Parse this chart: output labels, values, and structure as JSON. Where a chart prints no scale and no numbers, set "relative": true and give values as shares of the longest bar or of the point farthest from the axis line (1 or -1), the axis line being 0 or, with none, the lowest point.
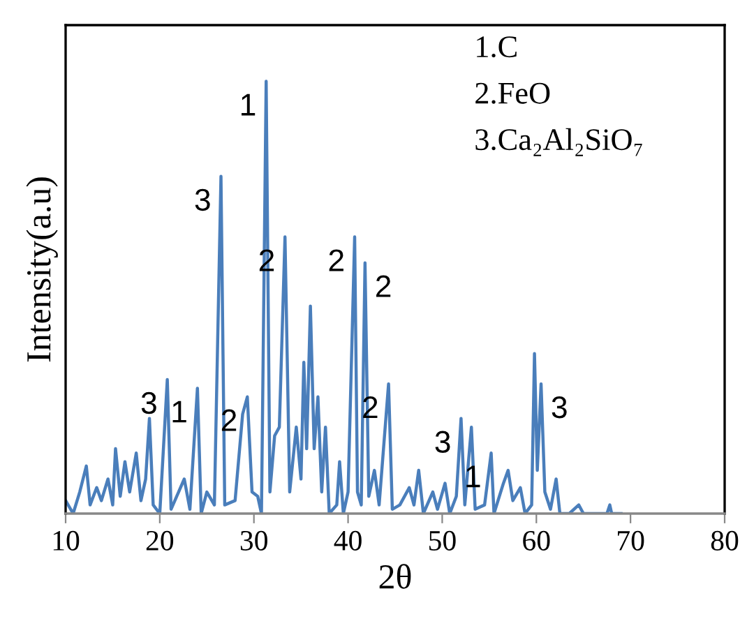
{
  "chart_data": {
    "type": "line",
    "relative": true,
    "xlabel": "2θ",
    "ylabel": "Intensity(a.u)",
    "xlim": [
      10,
      80
    ],
    "xticks": [
      10,
      20,
      30,
      40,
      50,
      60,
      70,
      80
    ],
    "grid": false,
    "marker": "none",
    "line_style": "solid",
    "series": [
      {
        "color": "#4a7ebb",
        "x": [
          10.0,
          10.8,
          11.5,
          12.2,
          12.6,
          13.3,
          13.8,
          14.5,
          15.0,
          15.3,
          15.8,
          16.3,
          16.8,
          17.5,
          18.0,
          18.5,
          18.9,
          19.3,
          20.0,
          20.8,
          21.2,
          22.0,
          22.6,
          23.2,
          24.0,
          24.4,
          25.0,
          25.8,
          26.5,
          26.9,
          28.0,
          28.8,
          29.3,
          29.8,
          30.4,
          30.8,
          31.3,
          31.7,
          32.2,
          32.7,
          33.3,
          33.8,
          34.5,
          35.0,
          35.3,
          35.6,
          36.0,
          36.4,
          36.8,
          37.2,
          37.6,
          38.0,
          38.8,
          39.1,
          39.5,
          40.0,
          40.7,
          41.0,
          41.4,
          41.8,
          42.2,
          42.8,
          43.3,
          44.3,
          44.7,
          45.5,
          46.5,
          47.0,
          47.5,
          48.0,
          49.0,
          49.5,
          50.3,
          50.8,
          51.5,
          52.0,
          52.4,
          53.1,
          53.5,
          54.5,
          55.2,
          55.5,
          56.5,
          57.0,
          57.5,
          58.3,
          58.8,
          59.5,
          59.8,
          60.1,
          60.5,
          60.9,
          61.5,
          62.1,
          62.5,
          63.5,
          64.5,
          65.0,
          67.5,
          67.8,
          68.0,
          69.0
        ],
        "values": [
          0.03,
          0.0,
          0.05,
          0.11,
          0.02,
          0.06,
          0.03,
          0.08,
          0.02,
          0.15,
          0.04,
          0.12,
          0.05,
          0.14,
          0.03,
          0.08,
          0.22,
          0.02,
          0.0,
          0.31,
          0.01,
          0.05,
          0.08,
          0.01,
          0.29,
          0.0,
          0.05,
          0.02,
          0.78,
          0.02,
          0.03,
          0.23,
          0.27,
          0.05,
          0.04,
          0.0,
          1.0,
          0.05,
          0.18,
          0.2,
          0.64,
          0.05,
          0.2,
          0.08,
          0.35,
          0.15,
          0.48,
          0.15,
          0.27,
          0.05,
          0.2,
          0.0,
          0.02,
          0.12,
          0.0,
          0.05,
          0.64,
          0.05,
          0.02,
          0.58,
          0.04,
          0.1,
          0.02,
          0.3,
          0.01,
          0.02,
          0.06,
          0.02,
          0.1,
          0.0,
          0.05,
          0.01,
          0.07,
          0.0,
          0.04,
          0.22,
          0.02,
          0.2,
          0.01,
          0.02,
          0.14,
          0.0,
          0.07,
          0.1,
          0.03,
          0.06,
          0.0,
          0.02,
          0.37,
          0.1,
          0.3,
          0.05,
          0.01,
          0.08,
          0.0,
          0.0,
          0.02,
          0.0,
          0.0,
          0.02,
          0.0,
          0.0
        ]
      }
    ],
    "annotations": [
      "1.C",
      "2.FeO",
      "3.Ca₂Al₂SiO₇",
      {
        "text": "3",
        "x": 26.5,
        "y": 0.78
      },
      {
        "text": "1",
        "x": 31.3,
        "y": 1.0
      },
      {
        "text": "2",
        "x": 33.3,
        "y": 0.64
      },
      {
        "text": "2",
        "x": 40.7,
        "y": 0.64
      },
      {
        "text": "2",
        "x": 41.8,
        "y": 0.58
      },
      {
        "text": "3",
        "x": 20.8,
        "y": 0.31
      },
      {
        "text": "1",
        "x": 24.0,
        "y": 0.29
      },
      {
        "text": "2",
        "x": 29.3,
        "y": 0.27
      },
      {
        "text": "2",
        "x": 44.3,
        "y": 0.3
      },
      {
        "text": "3",
        "x": 52.0,
        "y": 0.22
      },
      {
        "text": "1",
        "x": 55.2,
        "y": 0.14
      },
      {
        "text": "3",
        "x": 60.5,
        "y": 0.3
      }
    ]
  }
}
